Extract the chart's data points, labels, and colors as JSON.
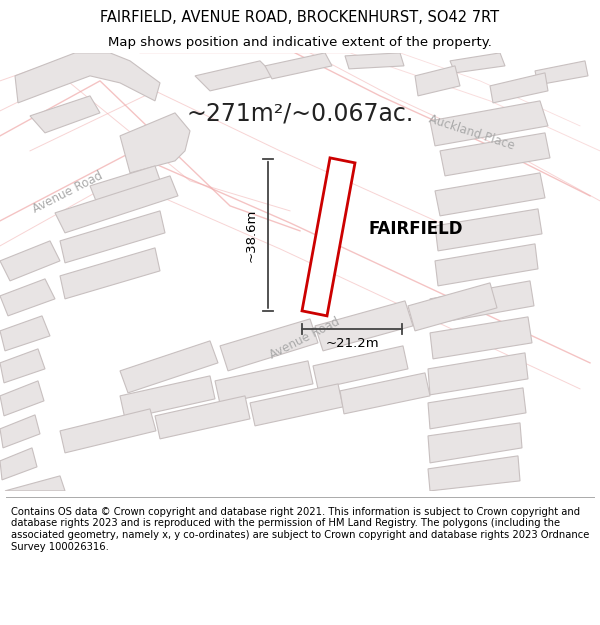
{
  "title": "FAIRFIELD, AVENUE ROAD, BROCKENHURST, SO42 7RT",
  "subtitle": "Map shows position and indicative extent of the property.",
  "footer": "Contains OS data © Crown copyright and database right 2021. This information is subject to Crown copyright and database rights 2023 and is reproduced with the permission of HM Land Registry. The polygons (including the associated geometry, namely x, y co-ordinates) are subject to Crown copyright and database rights 2023 Ordnance Survey 100026316.",
  "area_label": "~271m²/~0.067ac.",
  "property_name": "FAIRFIELD",
  "dim_height": "~38.6m",
  "dim_width": "~21.2m",
  "road_label_av1": "Avenue Road",
  "road_label_av2": "Avenue Road",
  "road_label_auck": "Auckland Place",
  "bg_color": "#f7f4f4",
  "building_fill": "#e8e4e4",
  "building_edge": "#c8c0c0",
  "road_fill": "#ffffff",
  "road_line_color": "#f0aaaa",
  "plot_outline_color": "#cc0000",
  "plot_fill": "#ffffff",
  "dim_line_color": "#444444",
  "street_label_color": "#aaaaaa",
  "title_fontsize": 10.5,
  "subtitle_fontsize": 9.5,
  "footer_fontsize": 7.2
}
